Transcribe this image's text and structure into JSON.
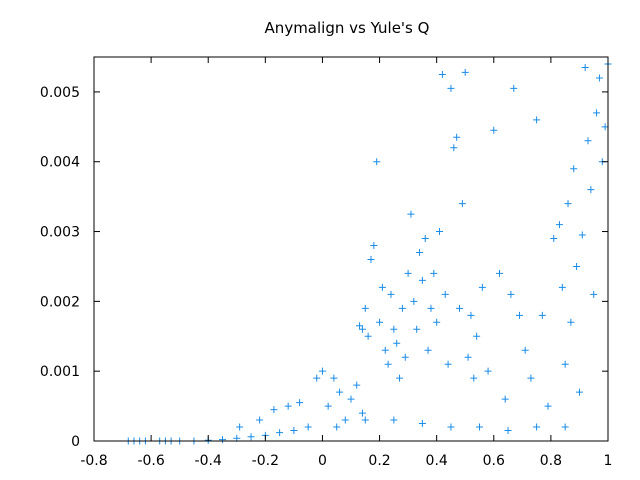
{
  "chart_data": {
    "type": "scatter",
    "title": "Anymalign vs Yule's Q",
    "xlabel": "",
    "ylabel": "",
    "xlim": [
      -0.8,
      1
    ],
    "ylim": [
      0,
      0.0055
    ],
    "x_ticks": [
      -0.8,
      -0.6,
      -0.4,
      -0.2,
      0,
      0.2,
      0.4,
      0.6,
      0.8,
      1
    ],
    "x_tick_labels": [
      "-0.8",
      "-0.6",
      "-0.4",
      "-0.2",
      "0",
      "0.2",
      "0.4",
      "0.6",
      "0.8",
      "1"
    ],
    "y_ticks": [
      0,
      0.001,
      0.002,
      0.003,
      0.004,
      0.005
    ],
    "y_tick_labels": [
      "0",
      "0.001",
      "0.002",
      "0.003",
      "0.004",
      "0.005"
    ],
    "grid": false,
    "legend": "none",
    "marker": "plus",
    "color": "#1a8ce6",
    "series": [
      {
        "points": [
          [
            -0.68,
            0
          ],
          [
            -0.66,
            0
          ],
          [
            -0.64,
            0
          ],
          [
            -0.62,
            0
          ],
          [
            -0.57,
            0
          ],
          [
            -0.55,
            0
          ],
          [
            -0.53,
            0
          ],
          [
            -0.5,
            0
          ],
          [
            -0.45,
            0
          ],
          [
            -0.4,
            1e-05
          ],
          [
            -0.35,
            2e-05
          ],
          [
            -0.3,
            4e-05
          ],
          [
            -0.25,
            6e-05
          ],
          [
            -0.2,
            8e-05
          ],
          [
            -0.15,
            0.00012
          ],
          [
            -0.1,
            0.00015
          ],
          [
            -0.05,
            0.0002
          ],
          [
            0.05,
            0.0002
          ],
          [
            0.15,
            0.0003
          ],
          [
            0.25,
            0.0003
          ],
          [
            0.35,
            0.00025
          ],
          [
            0.45,
            0.0002
          ],
          [
            0.55,
            0.0002
          ],
          [
            0.65,
            0.00015
          ],
          [
            0.75,
            0.0002
          ],
          [
            0.85,
            0.0002
          ],
          [
            -0.29,
            0.0002
          ],
          [
            -0.22,
            0.0003
          ],
          [
            -0.17,
            0.00045
          ],
          [
            -0.12,
            0.0005
          ],
          [
            -0.08,
            0.00055
          ],
          [
            -0.02,
            0.0009
          ],
          [
            0.0,
            0.001
          ],
          [
            0.02,
            0.0005
          ],
          [
            0.04,
            0.0009
          ],
          [
            0.06,
            0.0007
          ],
          [
            0.08,
            0.0003
          ],
          [
            0.1,
            0.0006
          ],
          [
            0.12,
            0.0008
          ],
          [
            0.14,
            0.0004
          ],
          [
            0.13,
            0.00165
          ],
          [
            0.14,
            0.0016
          ],
          [
            0.15,
            0.0019
          ],
          [
            0.16,
            0.0015
          ],
          [
            0.17,
            0.0026
          ],
          [
            0.18,
            0.0028
          ],
          [
            0.19,
            0.004
          ],
          [
            0.2,
            0.0017
          ],
          [
            0.21,
            0.0022
          ],
          [
            0.22,
            0.0013
          ],
          [
            0.23,
            0.0011
          ],
          [
            0.24,
            0.0021
          ],
          [
            0.25,
            0.0016
          ],
          [
            0.26,
            0.0014
          ],
          [
            0.27,
            0.0009
          ],
          [
            0.28,
            0.0019
          ],
          [
            0.29,
            0.0012
          ],
          [
            0.3,
            0.0024
          ],
          [
            0.31,
            0.00325
          ],
          [
            0.32,
            0.002
          ],
          [
            0.33,
            0.0016
          ],
          [
            0.34,
            0.0027
          ],
          [
            0.35,
            0.0023
          ],
          [
            0.36,
            0.0029
          ],
          [
            0.37,
            0.0013
          ],
          [
            0.38,
            0.0019
          ],
          [
            0.39,
            0.0024
          ],
          [
            0.4,
            0.0017
          ],
          [
            0.41,
            0.003
          ],
          [
            0.42,
            0.00525
          ],
          [
            0.43,
            0.0021
          ],
          [
            0.44,
            0.0011
          ],
          [
            0.45,
            0.00505
          ],
          [
            0.46,
            0.0042
          ],
          [
            0.47,
            0.00435
          ],
          [
            0.48,
            0.0019
          ],
          [
            0.49,
            0.0034
          ],
          [
            0.5,
            0.00528
          ],
          [
            0.51,
            0.0012
          ],
          [
            0.52,
            0.0018
          ],
          [
            0.53,
            0.0009
          ],
          [
            0.54,
            0.0015
          ],
          [
            0.56,
            0.0022
          ],
          [
            0.58,
            0.001
          ],
          [
            0.6,
            0.00445
          ],
          [
            0.62,
            0.0024
          ],
          [
            0.64,
            0.0006
          ],
          [
            0.66,
            0.0021
          ],
          [
            0.67,
            0.00505
          ],
          [
            0.69,
            0.0018
          ],
          [
            0.71,
            0.0013
          ],
          [
            0.73,
            0.0009
          ],
          [
            0.75,
            0.0046
          ],
          [
            0.77,
            0.0018
          ],
          [
            0.79,
            0.0005
          ],
          [
            0.81,
            0.0029
          ],
          [
            0.83,
            0.0031
          ],
          [
            0.84,
            0.0022
          ],
          [
            0.85,
            0.0011
          ],
          [
            0.86,
            0.0034
          ],
          [
            0.87,
            0.0017
          ],
          [
            0.88,
            0.0039
          ],
          [
            0.89,
            0.0025
          ],
          [
            0.9,
            0.0007
          ],
          [
            0.91,
            0.00295
          ],
          [
            0.92,
            0.00535
          ],
          [
            0.93,
            0.0043
          ],
          [
            0.94,
            0.0036
          ],
          [
            0.95,
            0.0021
          ],
          [
            0.96,
            0.0047
          ],
          [
            0.97,
            0.0052
          ],
          [
            0.98,
            0.004
          ],
          [
            0.99,
            0.0045
          ],
          [
            1.0,
            0.0054
          ]
        ]
      }
    ]
  }
}
